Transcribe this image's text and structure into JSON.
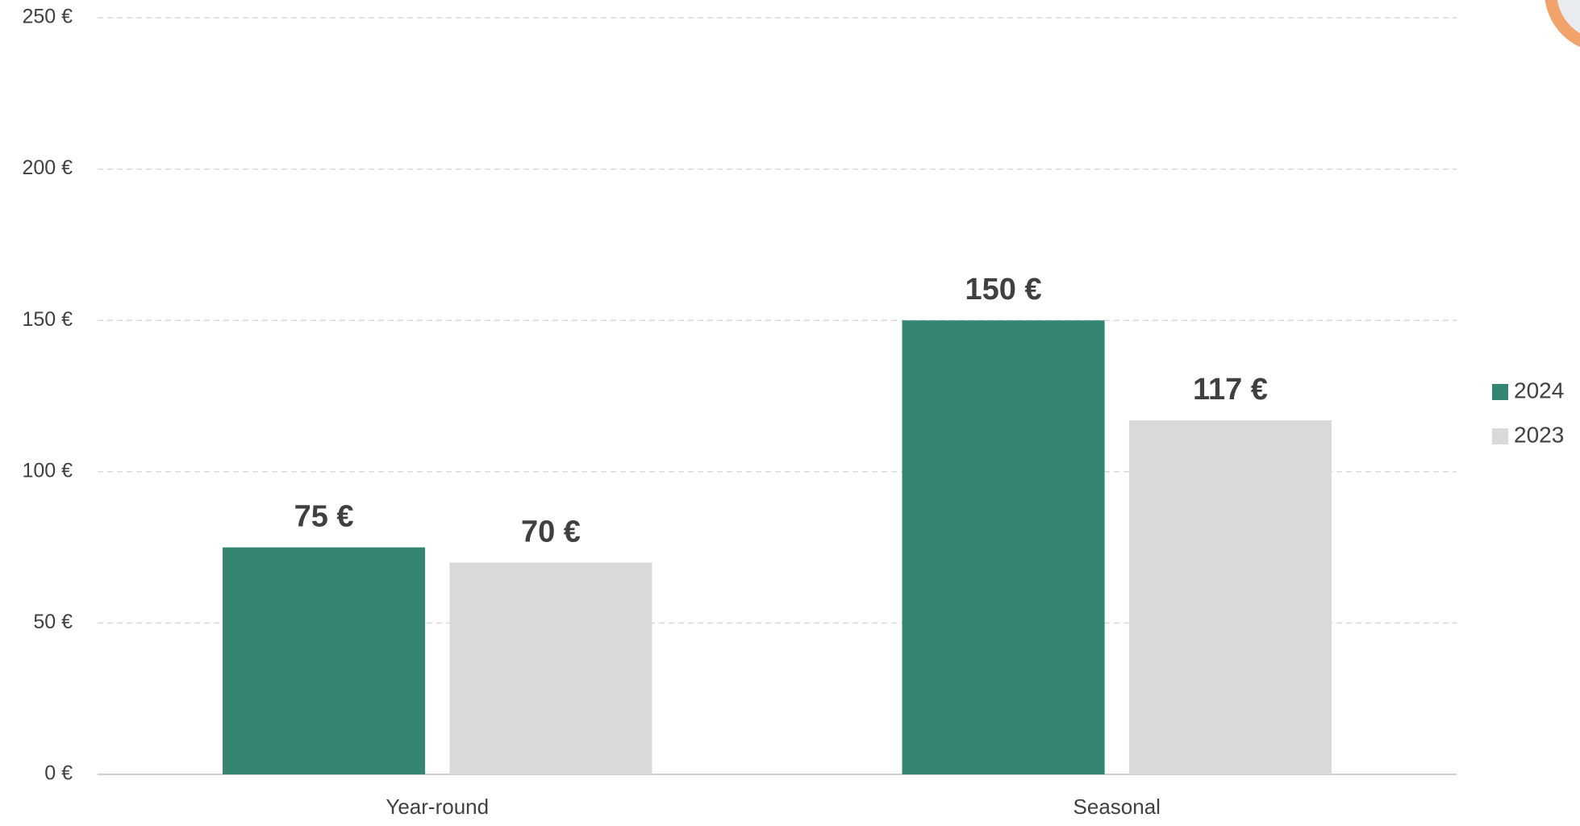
{
  "chart_data": {
    "type": "bar",
    "categories": [
      "Year-round",
      "Seasonal"
    ],
    "series": [
      {
        "name": "2024",
        "color": "#348673",
        "values": [
          75,
          150
        ],
        "value_labels": [
          "75 €",
          "150 €"
        ]
      },
      {
        "name": "2023",
        "color": "#d9d9d9",
        "values": [
          70,
          117
        ],
        "value_labels": [
          "70 €",
          "117 €"
        ]
      }
    ],
    "ylim": [
      0,
      250
    ],
    "yticks": [
      {
        "value": 0,
        "label": "0 €"
      },
      {
        "value": 50,
        "label": "50 €"
      },
      {
        "value": 100,
        "label": "100 €"
      },
      {
        "value": 150,
        "label": "150 €"
      },
      {
        "value": 200,
        "label": "200 €"
      },
      {
        "value": 250,
        "label": "250 €"
      }
    ],
    "grid": true,
    "legend": "right"
  }
}
